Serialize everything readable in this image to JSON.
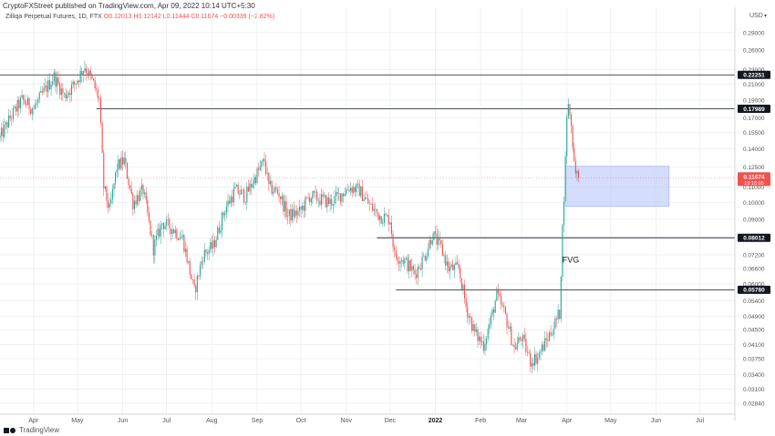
{
  "header": {
    "publish_line": "CryptoFXStreet published on TradingView.com, Apr 09, 2022 10:14 UTC+5:30",
    "symbol_line": "Zilliqa Perpetual Futures, 1D, FTX",
    "ohlc_line": "O0.12013  H0.12142  L0.11444  C0.11674  −0.00339 (−2.82%)"
  },
  "footer": {
    "brand": "TradingView",
    "logo_icon": "tradingview-logo-icon"
  },
  "chart_data": {
    "type": "candlestick",
    "currency_label": "USD",
    "y_axis": {
      "scale": "log",
      "ylim": [
        0.0265,
        0.34
      ],
      "ticks": [
        "0.29000",
        "0.26000",
        "0.23000",
        "0.21000",
        "0.19000",
        "0.17000",
        "0.15500",
        "0.14000",
        "0.12500",
        "0.11000",
        "0.10000",
        "0.09000",
        "0.08000",
        "0.07200",
        "0.06600",
        "0.06000",
        "0.05400",
        "0.04900",
        "0.04500",
        "0.04100",
        "0.03750",
        "0.03400",
        "0.03100",
        "0.02840"
      ]
    },
    "x_axis": {
      "range": [
        "2021-03-09",
        "2022-07-25"
      ],
      "ticks": [
        {
          "label": "Apr",
          "date": "2021-04-01"
        },
        {
          "label": "May",
          "date": "2021-05-01"
        },
        {
          "label": "Jun",
          "date": "2021-06-01"
        },
        {
          "label": "Jul",
          "date": "2021-07-01"
        },
        {
          "label": "Aug",
          "date": "2021-08-01"
        },
        {
          "label": "Sep",
          "date": "2021-09-01"
        },
        {
          "label": "Oct",
          "date": "2021-10-01"
        },
        {
          "label": "Nov",
          "date": "2021-11-01"
        },
        {
          "label": "Dec",
          "date": "2021-12-01"
        },
        {
          "label": "2022",
          "date": "2022-01-01"
        },
        {
          "label": "Feb",
          "date": "2022-02-01"
        },
        {
          "label": "Mar",
          "date": "2022-03-01"
        },
        {
          "label": "Apr",
          "date": "2022-04-01"
        },
        {
          "label": "May",
          "date": "2022-05-01"
        },
        {
          "label": "Jun",
          "date": "2022-06-01"
        },
        {
          "label": "Jul",
          "date": "2022-07-01"
        }
      ]
    },
    "price_path": [
      [
        "2021-03-09",
        0.15
      ],
      [
        "2021-03-16",
        0.17
      ],
      [
        "2021-03-24",
        0.19
      ],
      [
        "2021-04-01",
        0.18
      ],
      [
        "2021-04-08",
        0.2
      ],
      [
        "2021-04-15",
        0.22
      ],
      [
        "2021-04-22",
        0.195
      ],
      [
        "2021-04-29",
        0.21
      ],
      [
        "2021-05-06",
        0.235
      ],
      [
        "2021-05-12",
        0.21
      ],
      [
        "2021-05-16",
        0.19
      ],
      [
        "2021-05-19",
        0.11
      ],
      [
        "2021-05-23",
        0.095
      ],
      [
        "2021-05-28",
        0.125
      ],
      [
        "2021-06-02",
        0.13
      ],
      [
        "2021-06-08",
        0.1
      ],
      [
        "2021-06-15",
        0.108
      ],
      [
        "2021-06-22",
        0.075
      ],
      [
        "2021-06-28",
        0.088
      ],
      [
        "2021-07-05",
        0.085
      ],
      [
        "2021-07-12",
        0.08
      ],
      [
        "2021-07-20",
        0.057
      ],
      [
        "2021-07-26",
        0.072
      ],
      [
        "2021-08-02",
        0.076
      ],
      [
        "2021-08-10",
        0.096
      ],
      [
        "2021-08-17",
        0.108
      ],
      [
        "2021-08-24",
        0.104
      ],
      [
        "2021-08-31",
        0.118
      ],
      [
        "2021-09-06",
        0.13
      ],
      [
        "2021-09-09",
        0.11
      ],
      [
        "2021-09-16",
        0.106
      ],
      [
        "2021-09-22",
        0.092
      ],
      [
        "2021-09-30",
        0.094
      ],
      [
        "2021-10-07",
        0.104
      ],
      [
        "2021-10-14",
        0.102
      ],
      [
        "2021-10-21",
        0.1
      ],
      [
        "2021-10-28",
        0.105
      ],
      [
        "2021-11-03",
        0.11
      ],
      [
        "2021-11-10",
        0.108
      ],
      [
        "2021-11-17",
        0.098
      ],
      [
        "2021-11-24",
        0.092
      ],
      [
        "2021-12-01",
        0.09
      ],
      [
        "2021-12-04",
        0.072
      ],
      [
        "2021-12-10",
        0.07
      ],
      [
        "2021-12-18",
        0.064
      ],
      [
        "2021-12-25",
        0.072
      ],
      [
        "2021-12-30",
        0.082
      ],
      [
        "2022-01-05",
        0.075
      ],
      [
        "2022-01-10",
        0.066
      ],
      [
        "2022-01-17",
        0.066
      ],
      [
        "2022-01-22",
        0.052
      ],
      [
        "2022-01-28",
        0.044
      ],
      [
        "2022-02-03",
        0.041
      ],
      [
        "2022-02-08",
        0.048
      ],
      [
        "2022-02-12",
        0.056
      ],
      [
        "2022-02-18",
        0.049
      ],
      [
        "2022-02-24",
        0.04
      ],
      [
        "2022-03-01",
        0.043
      ],
      [
        "2022-03-07",
        0.037
      ],
      [
        "2022-03-12",
        0.038
      ],
      [
        "2022-03-18",
        0.042
      ],
      [
        "2022-03-23",
        0.046
      ],
      [
        "2022-03-27",
        0.05
      ],
      [
        "2022-03-29",
        0.085
      ],
      [
        "2022-03-31",
        0.13
      ],
      [
        "2022-04-01",
        0.175
      ],
      [
        "2022-04-02",
        0.182
      ],
      [
        "2022-04-03",
        0.176
      ],
      [
        "2022-04-04",
        0.16
      ],
      [
        "2022-04-05",
        0.145
      ],
      [
        "2022-04-06",
        0.13
      ],
      [
        "2022-04-07",
        0.124
      ],
      [
        "2022-04-08",
        0.1201
      ],
      [
        "2022-04-09",
        0.11674
      ]
    ],
    "horizontal_levels": [
      {
        "value": 0.22251,
        "label": "0.22251",
        "from": "2021-03-09"
      },
      {
        "value": 0.17989,
        "label": "0.17989",
        "from": "2021-05-14"
      },
      {
        "value": 0.08012,
        "label": "0.08012",
        "from": "2021-11-22"
      },
      {
        "value": 0.0578,
        "label": "0.05780",
        "from": "2021-12-05"
      }
    ],
    "current_price": {
      "value": 0.11674,
      "label": "0.11674",
      "countdown": "19:15:05"
    },
    "zones": [
      {
        "label": "",
        "from": "2022-03-31",
        "to": "2022-06-10",
        "ylow": 0.0975,
        "yhigh": 0.1255
      }
    ],
    "annotations": [
      {
        "text": "FVG",
        "date": "2022-04-01",
        "value": 0.0685
      }
    ],
    "colors": {
      "up": "#26a69a",
      "down": "#ef5350",
      "zone": "#c5d2f9",
      "zone_border": "#9cb2f2",
      "level": "#131722",
      "grid": "#eef0f3"
    }
  }
}
